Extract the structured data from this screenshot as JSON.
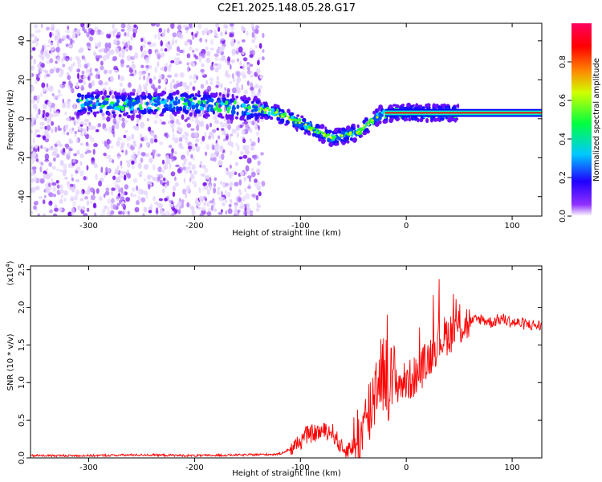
{
  "title": "C2E1.2025.148.05.28.G17",
  "chart_data": [
    {
      "type": "heatmap",
      "xlabel": "Height of straight line (km)",
      "ylabel": "Frequency (Hz)",
      "xlim": [
        -355,
        128
      ],
      "ylim": [
        -50,
        49
      ],
      "xticks": [
        -300,
        -200,
        -100,
        0,
        100
      ],
      "yticks": [
        -40,
        -20,
        0,
        20,
        40
      ],
      "colorbar": {
        "label": "Normalized spectral amplitude",
        "range": [
          0,
          1
        ],
        "ticks": [
          "0.0",
          "0.2",
          "0.4",
          "0.6",
          "0.8"
        ],
        "tick_values": [
          0.0,
          0.2,
          0.4,
          0.6,
          0.8
        ],
        "colormap": [
          "#ffffff",
          "#8000ff",
          "#0000ff",
          "#00ffff",
          "#00ff00",
          "#ffff00",
          "#ff8000",
          "#ff0000",
          "#ff0080"
        ]
      },
      "ridge": {
        "x": [
          -300,
          -260,
          -220,
          -180,
          -150,
          -130,
          -110,
          -90,
          -70,
          -55,
          -45,
          -35,
          -25,
          -15,
          0,
          20,
          50,
          128
        ],
        "y": [
          8,
          7,
          8,
          7,
          5,
          4,
          0,
          -5,
          -10,
          -8,
          -7,
          -2,
          2,
          3,
          3,
          3,
          3,
          3
        ]
      },
      "noise_region_x": [
        -355,
        -135
      ]
    },
    {
      "type": "line",
      "xlabel": "Height of straight line (km)",
      "ylabel": "SNR (10 * v/v)",
      "y_multiplier": "(x10",
      "y_multiplier_exp": "4",
      "y_multiplier_close": ")",
      "xlim": [
        -355,
        128
      ],
      "ylim": [
        0,
        2.55
      ],
      "xticks": [
        -300,
        -200,
        -100,
        0,
        100
      ],
      "yticks": [
        "0.0",
        "0.5",
        "1.0",
        "1.5",
        "2.0",
        "2.5"
      ],
      "series": [
        {
          "color": "#ff0000",
          "x": [
            -355,
            -300,
            -250,
            -200,
            -150,
            -120,
            -105,
            -95,
            -80,
            -70,
            -60,
            -50,
            -40,
            -35,
            -30,
            -25,
            -20,
            -15,
            -10,
            0,
            10,
            20,
            30,
            40,
            50,
            60,
            70,
            80,
            90,
            100,
            110,
            128
          ],
          "y": [
            0.03,
            0.03,
            0.04,
            0.03,
            0.04,
            0.05,
            0.15,
            0.3,
            0.35,
            0.35,
            0.1,
            0.15,
            0.3,
            0.6,
            0.9,
            1.2,
            1.1,
            1.0,
            1.0,
            1.0,
            1.1,
            1.3,
            1.55,
            1.65,
            1.75,
            1.8,
            1.85,
            1.8,
            1.85,
            1.8,
            1.78,
            1.75
          ]
        }
      ]
    }
  ]
}
